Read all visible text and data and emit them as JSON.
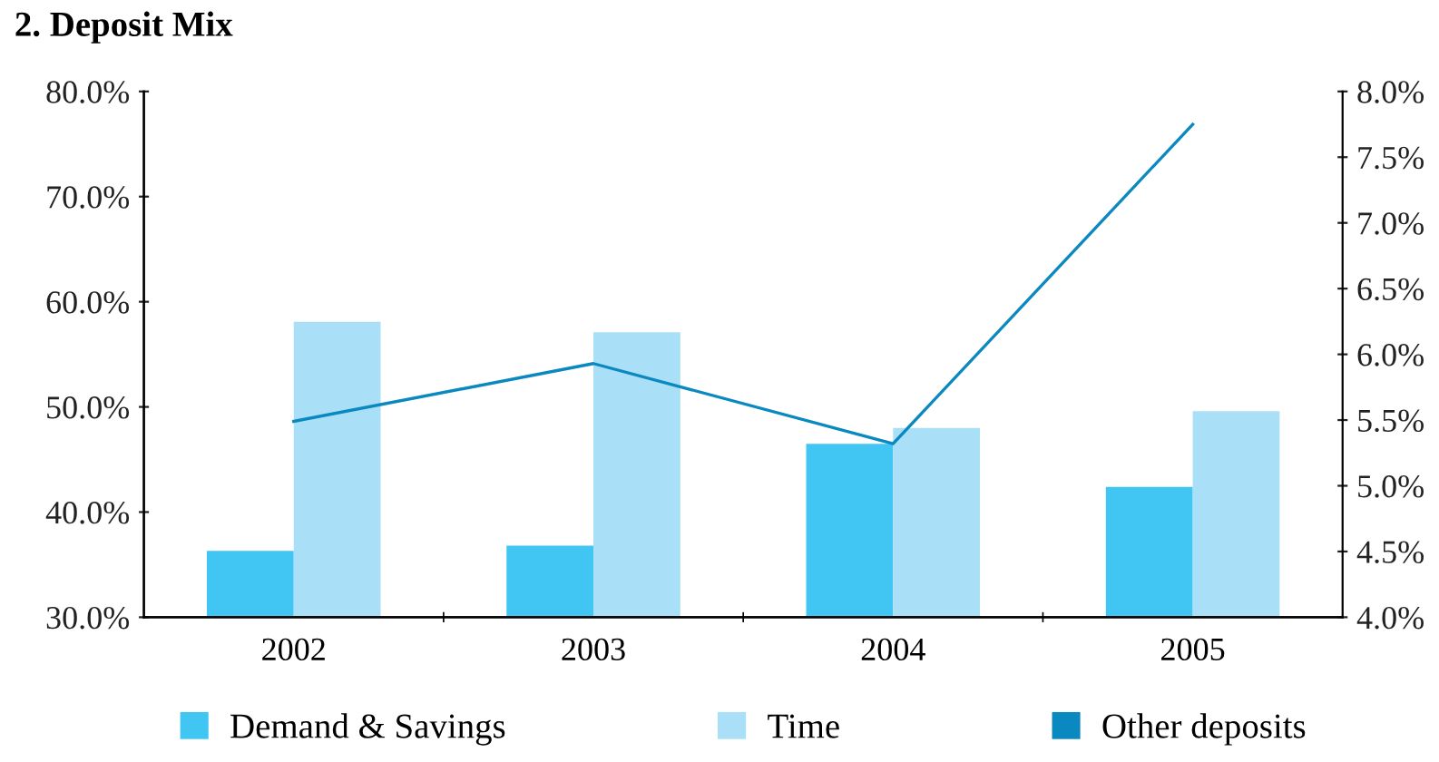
{
  "chart_data": {
    "type": "bar",
    "title": "2. Deposit Mix",
    "categories": [
      "2002",
      "2003",
      "2004",
      "2005"
    ],
    "series": [
      {
        "name": "Demand & Savings",
        "color": "#41c6f3",
        "values": [
          36.3,
          36.8,
          46.5,
          42.4
        ]
      },
      {
        "name": "Time",
        "color": "#aadff8",
        "values": [
          58.1,
          57.1,
          48.0,
          49.6
        ]
      },
      {
        "name": "Other deposits",
        "color": "#0a88c0",
        "type": "line",
        "axis": "y2",
        "values": [
          5.49,
          5.93,
          5.32,
          7.75
        ]
      }
    ],
    "ylim": [
      30,
      80
    ],
    "yticks": [
      {
        "value": 30,
        "label": "30.0%"
      },
      {
        "value": 40,
        "label": "40.0%"
      },
      {
        "value": 50,
        "label": "50.0%"
      },
      {
        "value": 60,
        "label": "60.0%"
      },
      {
        "value": 70,
        "label": "70.0%"
      },
      {
        "value": 80,
        "label": "80.0%"
      }
    ],
    "y2lim": [
      4.0,
      8.0
    ],
    "y2ticks": [
      {
        "value": 4.0,
        "label": "4.0%"
      },
      {
        "value": 4.5,
        "label": "4.5%"
      },
      {
        "value": 5.0,
        "label": "5.0%"
      },
      {
        "value": 5.5,
        "label": "5.5%"
      },
      {
        "value": 6.0,
        "label": "6.0%"
      },
      {
        "value": 6.5,
        "label": "6.5%"
      },
      {
        "value": 7.0,
        "label": "7.0%"
      },
      {
        "value": 7.5,
        "label": "7.5%"
      },
      {
        "value": 8.0,
        "label": "8.0%"
      }
    ],
    "grid": false,
    "legend": "bottom",
    "marker": "none",
    "line_style": "solid"
  }
}
